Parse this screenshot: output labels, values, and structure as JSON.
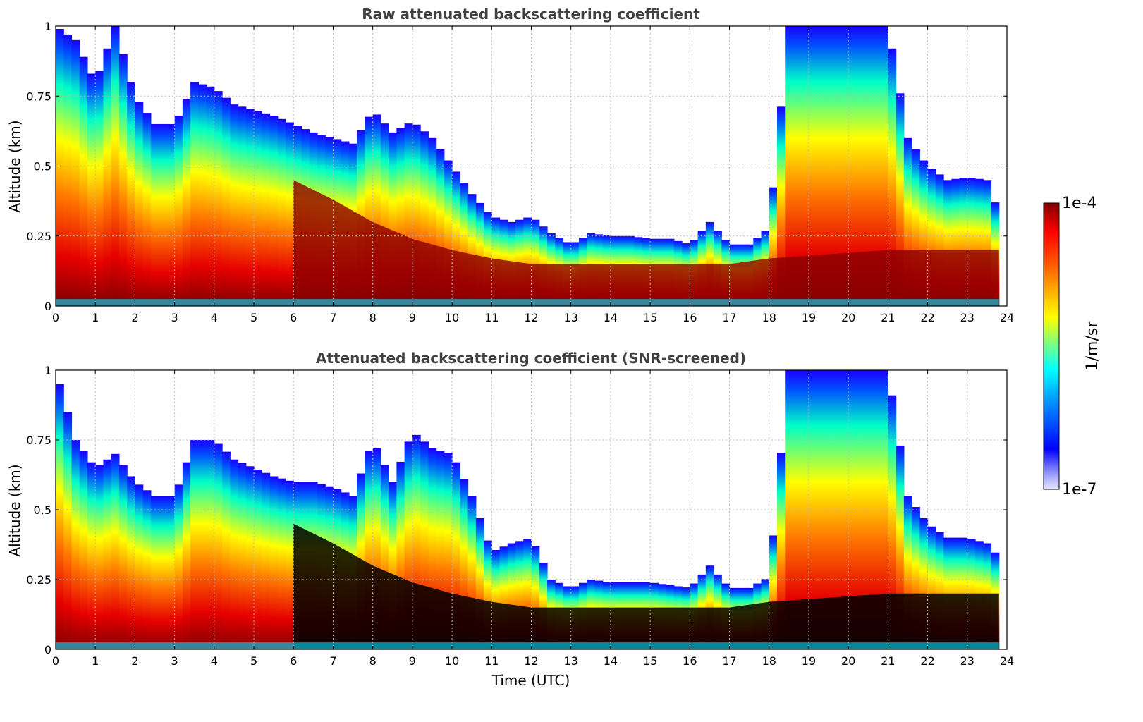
{
  "chart_data": [
    {
      "type": "heatmap",
      "title": "Raw attenuated backscattering coefficient",
      "xlabel": "",
      "ylabel": "Altitude (km)",
      "xlim": [
        0,
        24
      ],
      "ylim": [
        0,
        1
      ],
      "x_ticks": [
        "0",
        "1",
        "2",
        "3",
        "4",
        "5",
        "6",
        "7",
        "8",
        "9",
        "10",
        "11",
        "12",
        "13",
        "14",
        "15",
        "16",
        "17",
        "18",
        "19",
        "20",
        "21",
        "22",
        "23",
        "24"
      ],
      "y_ticks": [
        "0",
        "0.25",
        "0.5",
        "0.75",
        "1"
      ],
      "grid": true,
      "screened": false,
      "aerosol_layer_top_km": {
        "x": [
          0,
          0.5,
          1,
          1.5,
          2,
          2.5,
          3,
          3.5,
          4,
          4.5,
          5,
          5.5,
          6,
          6.5,
          7,
          7.5,
          8,
          8.5,
          9,
          9.5,
          10,
          10.5,
          11,
          11.5,
          12,
          12.5,
          13,
          13.5,
          14,
          14.5,
          15,
          15.5,
          16,
          16.5,
          17,
          17.5,
          18,
          18.5,
          19,
          19.5,
          20,
          20.5,
          21,
          21.5,
          22,
          22.5,
          23,
          23.5,
          23.8
        ],
        "y": [
          1.0,
          0.95,
          0.8,
          1.0,
          0.75,
          0.65,
          0.65,
          0.8,
          0.78,
          0.72,
          0.7,
          0.68,
          0.65,
          0.62,
          0.6,
          0.58,
          0.7,
          0.62,
          0.66,
          0.6,
          0.5,
          0.4,
          0.32,
          0.3,
          0.32,
          0.26,
          0.22,
          0.26,
          0.25,
          0.25,
          0.24,
          0.24,
          0.22,
          0.3,
          0.22,
          0.22,
          0.28,
          1.0,
          1.0,
          1.0,
          1.0,
          1.0,
          1.0,
          0.6,
          0.5,
          0.45,
          0.46,
          0.45,
          0.33
        ]
      },
      "dense_layer_top_km": {
        "x": [
          6,
          7,
          8,
          9,
          10,
          11,
          12,
          13,
          14,
          15,
          16,
          17,
          18,
          21,
          22,
          23,
          23.8
        ],
        "y": [
          0.45,
          0.38,
          0.3,
          0.24,
          0.2,
          0.17,
          0.15,
          0.15,
          0.15,
          0.15,
          0.15,
          0.15,
          0.17,
          0.2,
          0.2,
          0.2,
          0.2
        ]
      }
    },
    {
      "type": "heatmap",
      "title": "Attenuated backscattering coefficient (SNR-screened)",
      "xlabel": "Time (UTC)",
      "ylabel": "Altitude (km)",
      "xlim": [
        0,
        24
      ],
      "ylim": [
        0,
        1
      ],
      "x_ticks": [
        "0",
        "1",
        "2",
        "3",
        "4",
        "5",
        "6",
        "7",
        "8",
        "9",
        "10",
        "11",
        "12",
        "13",
        "14",
        "15",
        "16",
        "17",
        "18",
        "19",
        "20",
        "21",
        "22",
        "23",
        "24"
      ],
      "y_ticks": [
        "0",
        "0.25",
        "0.5",
        "0.75",
        "1"
      ],
      "grid": true,
      "screened": true,
      "aerosol_layer_top_km": {
        "x": [
          0,
          0.5,
          1,
          1.5,
          2,
          2.5,
          3,
          3.5,
          4,
          4.5,
          5,
          5.5,
          6,
          6.5,
          7,
          7.5,
          8,
          8.5,
          9,
          9.5,
          10,
          10.5,
          11,
          11.5,
          12,
          12.5,
          13,
          13.5,
          14,
          14.5,
          15,
          15.5,
          16,
          16.5,
          17,
          17.5,
          18,
          18.5,
          19,
          19.5,
          20,
          20.5,
          21,
          21.5,
          22,
          22.5,
          23,
          23.5,
          23.8
        ],
        "y": [
          1.0,
          0.75,
          0.65,
          0.7,
          0.6,
          0.55,
          0.55,
          0.75,
          0.75,
          0.68,
          0.65,
          0.62,
          0.6,
          0.6,
          0.58,
          0.55,
          0.75,
          0.6,
          0.78,
          0.72,
          0.7,
          0.55,
          0.35,
          0.38,
          0.4,
          0.25,
          0.22,
          0.25,
          0.24,
          0.24,
          0.24,
          0.23,
          0.22,
          0.3,
          0.22,
          0.22,
          0.26,
          1.0,
          1.0,
          1.0,
          1.0,
          1.0,
          1.0,
          0.55,
          0.45,
          0.4,
          0.4,
          0.38,
          0.33
        ]
      },
      "dense_layer_top_km": {
        "x": [
          6,
          7,
          8,
          9,
          10,
          11,
          12,
          13,
          14,
          15,
          16,
          17,
          18,
          21,
          22,
          23,
          23.8
        ],
        "y": [
          0.45,
          0.38,
          0.3,
          0.24,
          0.2,
          0.17,
          0.15,
          0.15,
          0.15,
          0.15,
          0.15,
          0.15,
          0.17,
          0.2,
          0.2,
          0.2,
          0.2
        ]
      }
    }
  ],
  "colorbar": {
    "max_label": "1e-4",
    "min_label": "1e-7",
    "units_label": "1/m/sr",
    "scale": "log",
    "colormap": "jet",
    "colors": [
      "#e8e8ff",
      "#0000ff",
      "#00ffff",
      "#ffff00",
      "#ff0000",
      "#800000"
    ]
  }
}
